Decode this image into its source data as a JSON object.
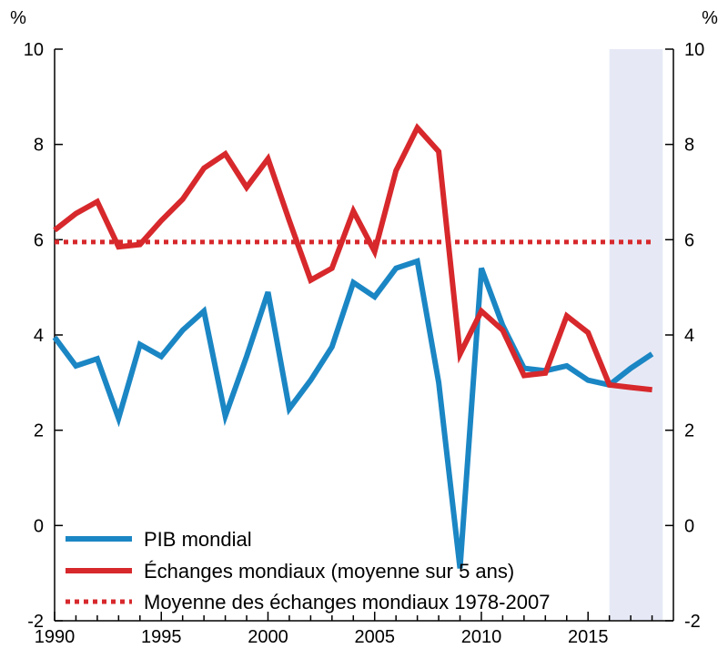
{
  "chart_data": {
    "type": "line",
    "unit_left": "%",
    "unit_right": "%",
    "x_ticks": [
      1990,
      1995,
      2000,
      2005,
      2010,
      2015
    ],
    "xlim": [
      1990,
      2018
    ],
    "ylim": [
      -2,
      10
    ],
    "y_ticks": [
      -2,
      0,
      2,
      4,
      6,
      8,
      10
    ],
    "grid": false,
    "shaded_region": [
      2016,
      2018.5
    ],
    "shaded_color": "#e6e9f5",
    "legend_placement": "bottom-left",
    "series": [
      {
        "name": "PIB mondial",
        "color": "#1b86c4",
        "style": "solid",
        "x": [
          1990,
          1991,
          1992,
          1993,
          1994,
          1995,
          1996,
          1997,
          1998,
          1999,
          2000,
          2001,
          2002,
          2003,
          2004,
          2005,
          2006,
          2007,
          2008,
          2009,
          2010,
          2011,
          2012,
          2013,
          2014,
          2015,
          2016,
          2017,
          2018
        ],
        "y": [
          3.95,
          3.35,
          3.5,
          2.25,
          3.8,
          3.55,
          4.1,
          4.5,
          2.3,
          3.55,
          4.9,
          2.45,
          3.05,
          3.75,
          5.1,
          4.8,
          5.4,
          5.55,
          3.0,
          -0.9,
          5.4,
          4.2,
          3.3,
          3.25,
          3.35,
          3.05,
          2.95,
          3.3,
          3.6
        ]
      },
      {
        "name": "Échanges mondiaux (moyenne sur 5 ans)",
        "color": "#d7282c",
        "style": "solid",
        "x": [
          1990,
          1991,
          1992,
          1993,
          1994,
          1995,
          1996,
          1997,
          1998,
          1999,
          2000,
          2001,
          2002,
          2003,
          2004,
          2005,
          2006,
          2007,
          2008,
          2009,
          2010,
          2011,
          2012,
          2013,
          2014,
          2015,
          2016,
          2017,
          2018
        ],
        "y": [
          6.2,
          6.55,
          6.8,
          5.85,
          5.9,
          6.4,
          6.85,
          7.5,
          7.8,
          7.1,
          7.7,
          6.4,
          5.15,
          5.4,
          6.6,
          5.75,
          7.45,
          8.35,
          7.85,
          3.6,
          4.5,
          4.1,
          3.15,
          3.2,
          4.4,
          4.05,
          2.95,
          2.9,
          2.85
        ]
      },
      {
        "name": "Moyenne des échanges mondiaux 1978-2007",
        "color": "#d7282c",
        "style": "dotted",
        "x": [
          1990,
          2018
        ],
        "y": [
          5.95,
          5.95
        ]
      }
    ]
  }
}
